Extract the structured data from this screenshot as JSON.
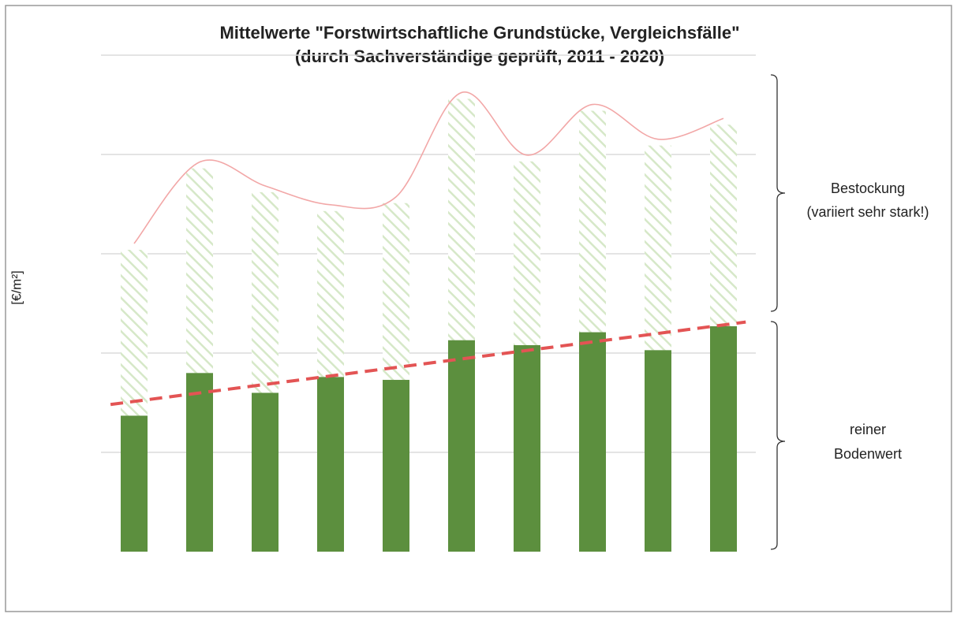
{
  "chart_data": {
    "type": "stacked_bar",
    "title": "Mittelwerte \"Forstwirtschaftliche Grundstücke, Vergleichsfälle\"",
    "subtitle": "(durch Sachverständige geprüft, 2011 - 2020)",
    "y_label": "[€/m²]",
    "categories": [
      null,
      null,
      null,
      null,
      null,
      null,
      null,
      null,
      null,
      null
    ],
    "series": [
      {
        "color": "#5c8f3e",
        "values": [
          1.37,
          1.8,
          1.6,
          1.76,
          1.73,
          2.13,
          2.08,
          2.21,
          2.03,
          2.27
        ]
      },
      {
        "color": "#d6e8c8",
        "values": [
          1.67,
          2.06,
          2.02,
          1.67,
          1.78,
          2.43,
          1.85,
          2.23,
          2.06,
          2.03
        ]
      }
    ],
    "ylim": [
      0,
      5
    ],
    "yticks": [
      1,
      2,
      3,
      4,
      5
    ],
    "grid": true,
    "annotations": [
      {
        "lines": [
          "Bestockung",
          "(variiert sehr stark!)"
        ]
      },
      {
        "lines": [
          "reiner",
          "Bodenwert"
        ]
      }
    ]
  }
}
